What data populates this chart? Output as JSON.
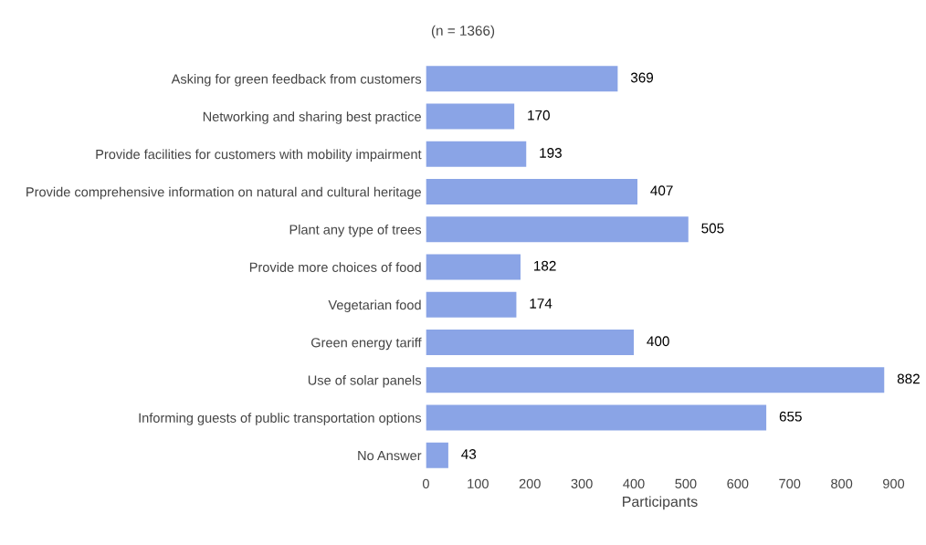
{
  "chart_data": {
    "type": "bar",
    "orientation": "horizontal",
    "title": "(n = 1366)",
    "xlabel": "Participants",
    "categories": [
      "Asking for green feedback from customers",
      "Networking and sharing best practice",
      "Provide facilities for customers with mobility impairment",
      "Provide comprehensive information on natural and cultural heritage",
      "Plant any type of trees",
      "Provide more choices of food",
      "Vegetarian food",
      "Green energy tariff",
      "Use of solar panels",
      "Informing guests of public transportation options",
      "No Answer"
    ],
    "values": [
      369,
      170,
      193,
      407,
      505,
      182,
      174,
      400,
      882,
      655,
      43
    ],
    "color": "#8aa4e6",
    "xlim": [
      0,
      900
    ],
    "xticks": [
      0,
      100,
      200,
      300,
      400,
      500,
      600,
      700,
      800,
      900
    ],
    "data_labels": true,
    "grid": false,
    "legend": false
  }
}
